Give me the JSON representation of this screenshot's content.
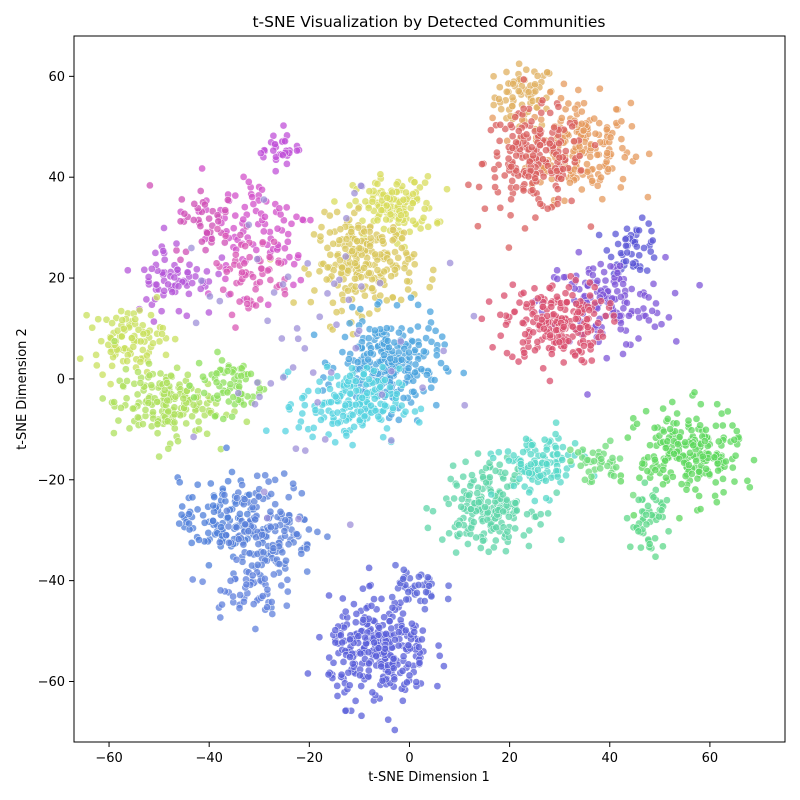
{
  "chart_data": {
    "type": "scatter",
    "title": "t-SNE Visualization by Detected Communities",
    "xlabel": "t-SNE Dimension 1",
    "ylabel": "t-SNE Dimension 2",
    "xlim": [
      -67,
      75
    ],
    "ylim": [
      -72,
      68
    ],
    "xticks": [
      -60,
      -40,
      -20,
      0,
      20,
      40,
      60
    ],
    "yticks": [
      -60,
      -40,
      -20,
      0,
      20,
      40,
      60
    ],
    "xtick_labels": [
      "−60",
      "−40",
      "−20",
      "0",
      "20",
      "40",
      "60"
    ],
    "ytick_labels": [
      "−60",
      "−40",
      "−20",
      "0",
      "20",
      "40",
      "60"
    ],
    "grid": false,
    "legend": "none",
    "marker_opacity": 0.75,
    "marker_edge_color": "#ffffff",
    "clusters": [
      {
        "cx": 23,
        "cy": 56,
        "sx": 3.0,
        "sy": 3.2,
        "n": 70,
        "color": "#e0b060"
      },
      {
        "cx": 34,
        "cy": 46,
        "sx": 5.0,
        "sy": 5.0,
        "n": 190,
        "color": "#e59a5c"
      },
      {
        "cx": 25,
        "cy": 43,
        "sx": 5.0,
        "sy": 5.0,
        "n": 200,
        "color": "#d95f5f"
      },
      {
        "cx": 45,
        "cy": 26,
        "sx": 2.5,
        "sy": 2.5,
        "n": 50,
        "color": "#5a55d6"
      },
      {
        "cx": 39,
        "cy": 15,
        "sx": 6.0,
        "sy": 4.5,
        "n": 140,
        "color": "#7d55d8"
      },
      {
        "cx": 29,
        "cy": 11,
        "sx": 5.0,
        "sy": 4.0,
        "n": 210,
        "color": "#d94f6e"
      },
      {
        "cx": -3,
        "cy": 34,
        "sx": 4.0,
        "sy": 3.0,
        "n": 140,
        "color": "#d8dc5c"
      },
      {
        "cx": -9,
        "cy": 23,
        "sx": 5.0,
        "sy": 4.5,
        "n": 220,
        "color": "#d9c75c"
      },
      {
        "cx": -4,
        "cy": 3,
        "sx": 5.0,
        "sy": 4.5,
        "n": 250,
        "color": "#4aa3dd"
      },
      {
        "cx": -12,
        "cy": -5,
        "sx": 5.0,
        "sy": 3.5,
        "n": 180,
        "color": "#55d3e0"
      },
      {
        "cx": -26,
        "cy": 46,
        "sx": 2.0,
        "sy": 2.0,
        "n": 30,
        "color": "#c050d8"
      },
      {
        "cx": -30,
        "cy": 30,
        "sx": 6.0,
        "sy": 6.0,
        "n": 90,
        "color": "#d150c9"
      },
      {
        "cx": -40,
        "cy": 31,
        "sx": 3.5,
        "sy": 3.5,
        "n": 40,
        "color": "#cf4fb5"
      },
      {
        "cx": -47,
        "cy": 20,
        "sx": 4.0,
        "sy": 4.0,
        "n": 70,
        "color": "#b455d8"
      },
      {
        "cx": -32,
        "cy": 21,
        "sx": 4.5,
        "sy": 4.0,
        "n": 60,
        "color": "#d957b4"
      },
      {
        "cx": -56,
        "cy": 8,
        "sx": 3.5,
        "sy": 3.0,
        "n": 90,
        "color": "#c8e05c"
      },
      {
        "cx": -49,
        "cy": -5,
        "sx": 5.0,
        "sy": 3.5,
        "n": 170,
        "color": "#aee05c"
      },
      {
        "cx": -36,
        "cy": -1,
        "sx": 3.5,
        "sy": 3.0,
        "n": 70,
        "color": "#8ee05c"
      },
      {
        "cx": -38,
        "cy": -28,
        "sx": 4.0,
        "sy": 4.0,
        "n": 110,
        "color": "#4f7fd9"
      },
      {
        "cx": -28,
        "cy": -30,
        "sx": 4.5,
        "sy": 5.0,
        "n": 160,
        "color": "#5a80d9"
      },
      {
        "cx": -33,
        "cy": -42,
        "sx": 3.5,
        "sy": 2.5,
        "n": 50,
        "color": "#5f80dc"
      },
      {
        "cx": -6,
        "cy": -54,
        "sx": 5.0,
        "sy": 5.0,
        "n": 300,
        "color": "#5a5fd9"
      },
      {
        "cx": 1,
        "cy": -42,
        "sx": 3.0,
        "sy": 2.5,
        "n": 40,
        "color": "#5b66d8"
      },
      {
        "cx": 16,
        "cy": -25,
        "sx": 4.5,
        "sy": 4.0,
        "n": 200,
        "color": "#5ed6a8"
      },
      {
        "cx": 26,
        "cy": -17,
        "sx": 4.0,
        "sy": 3.0,
        "n": 110,
        "color": "#56d8c8"
      },
      {
        "cx": 37,
        "cy": -17,
        "sx": 3.0,
        "sy": 2.0,
        "n": 40,
        "color": "#6fdc7a"
      },
      {
        "cx": 56,
        "cy": -15,
        "sx": 5.0,
        "sy": 4.5,
        "n": 220,
        "color": "#5ed85e"
      },
      {
        "cx": 48,
        "cy": -28,
        "sx": 2.0,
        "sy": 3.0,
        "n": 50,
        "color": "#5ed889"
      },
      {
        "cx": -18,
        "cy": 5,
        "sx": 12.0,
        "sy": 15.0,
        "n": 60,
        "color": "#9e8fd8"
      }
    ]
  }
}
